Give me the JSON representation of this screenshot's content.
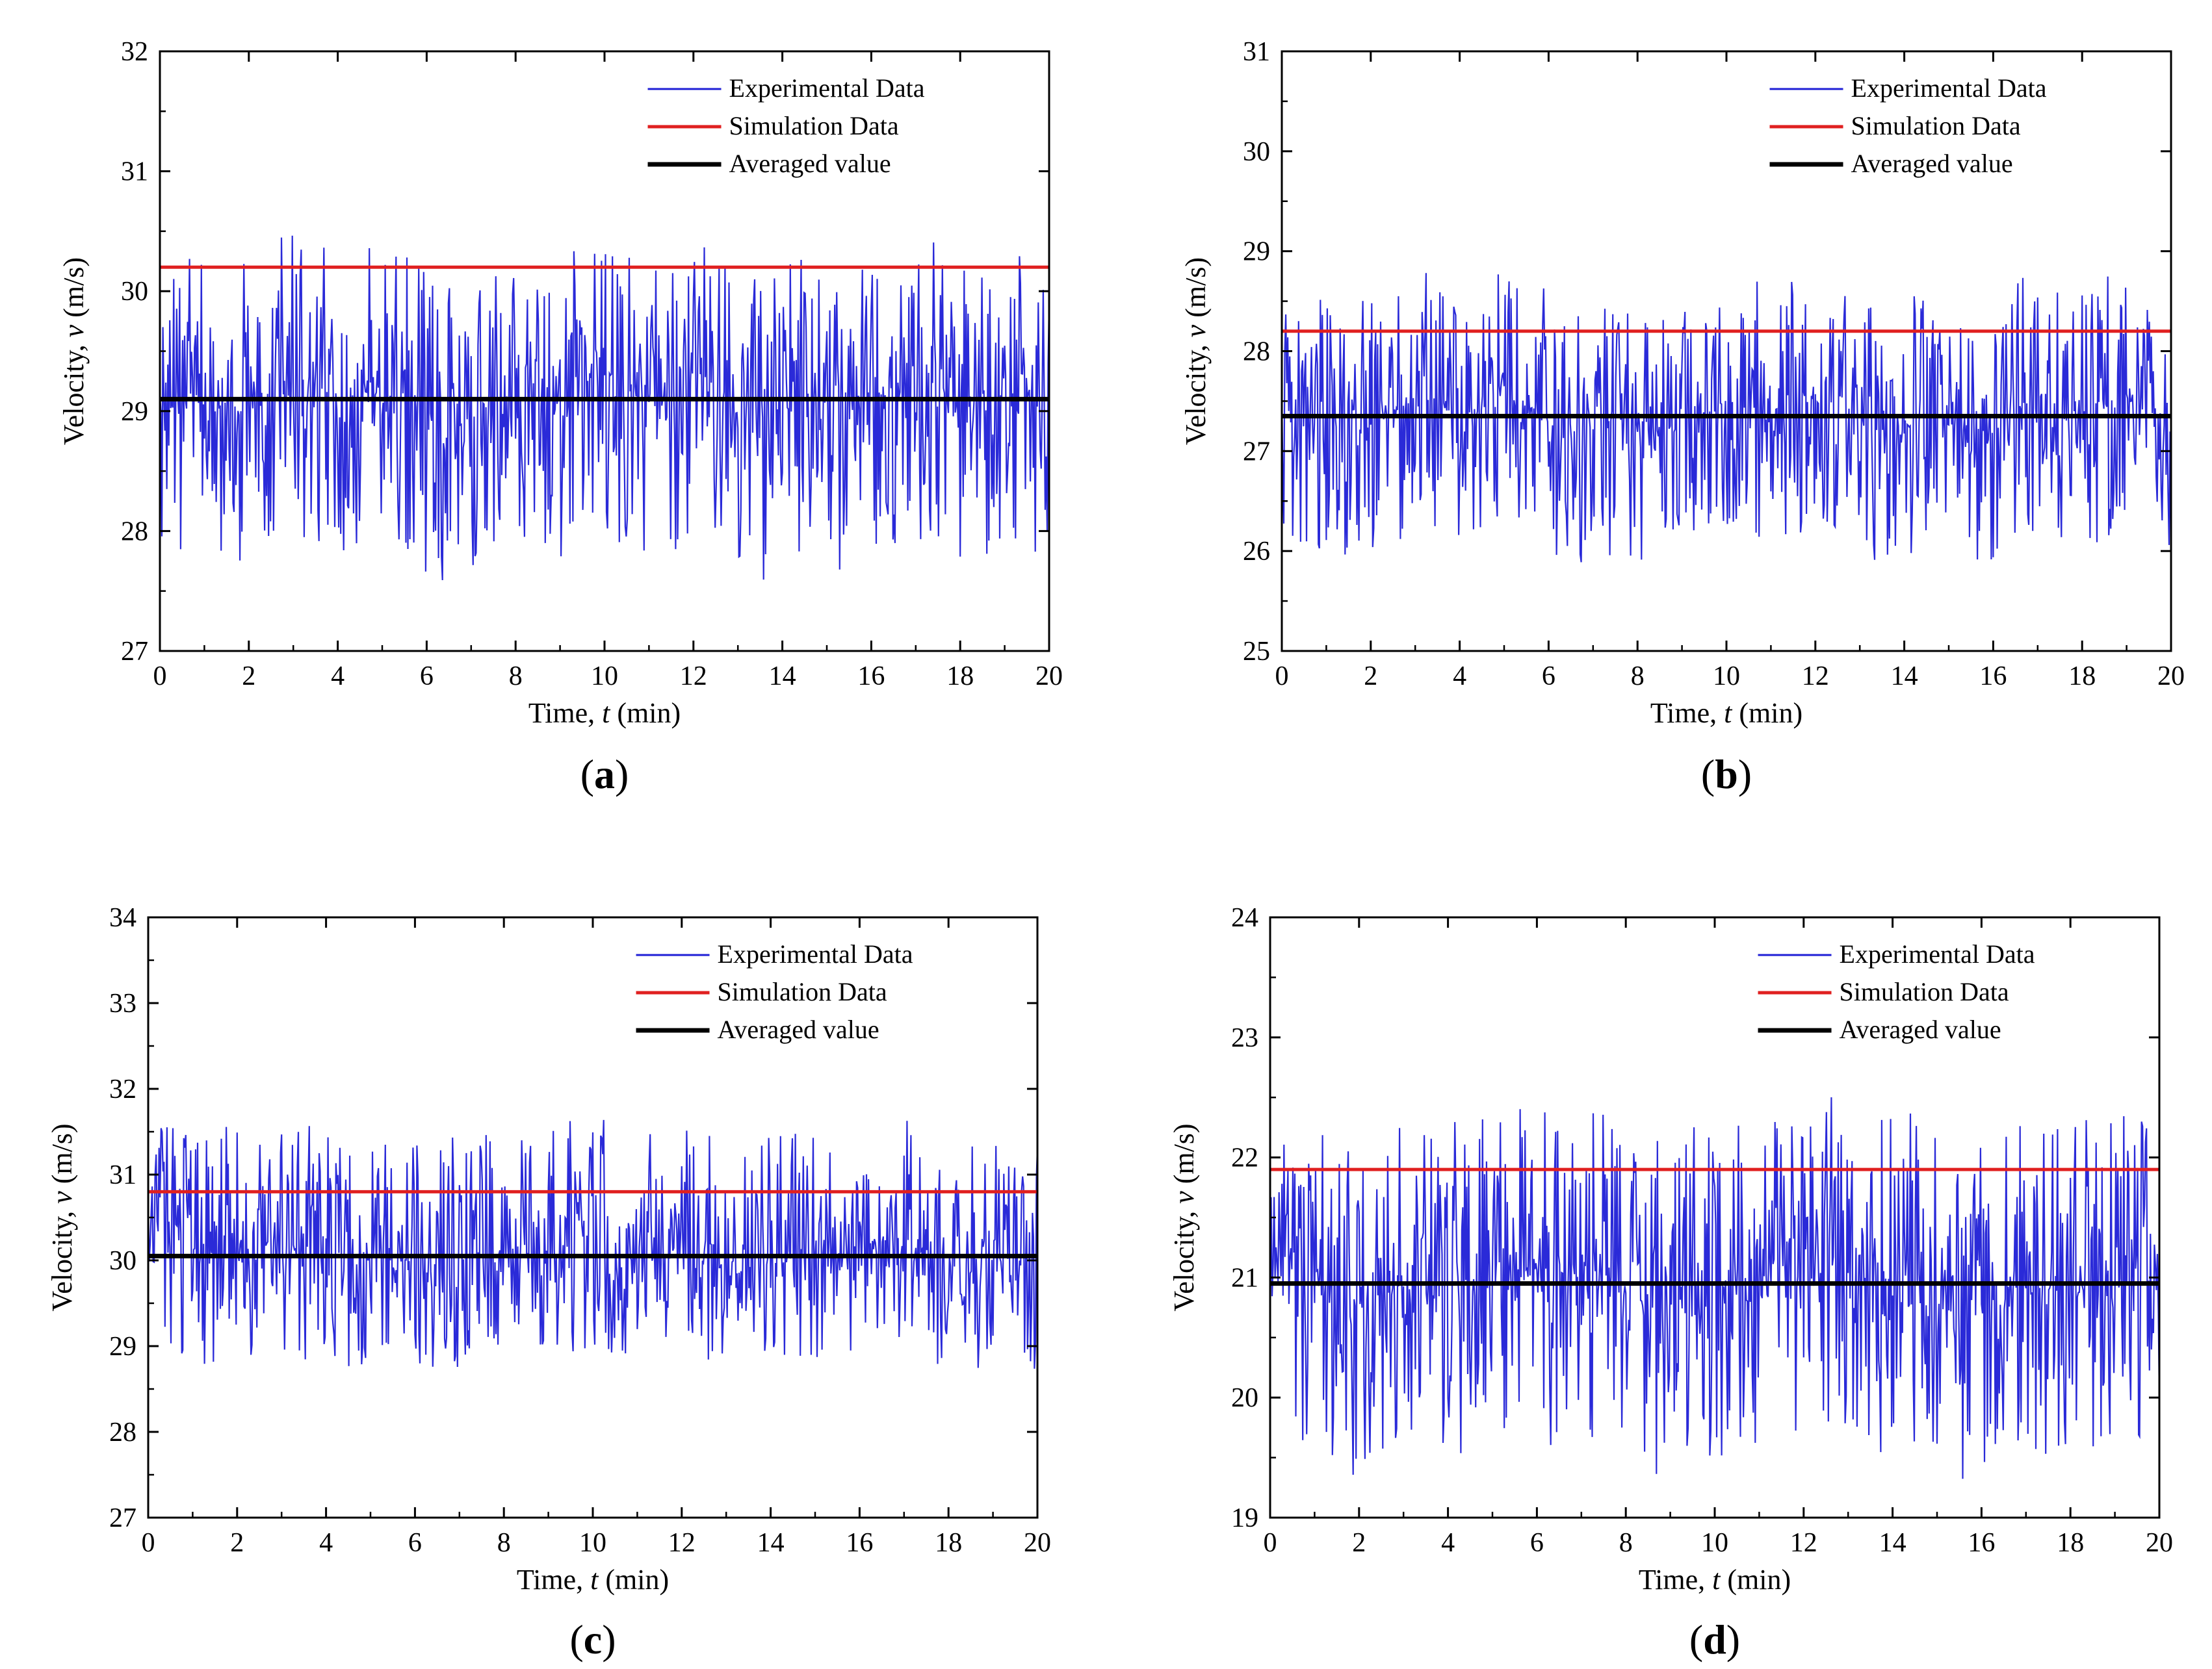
{
  "figure": {
    "panels_count": 4
  },
  "chart_data": [
    {
      "id": "a",
      "type": "line",
      "panel_label": "(a)",
      "panel_letter": "a",
      "xlabel_prefix": "Time, ",
      "xlabel_var": "t",
      "xlabel_suffix": " (min)",
      "ylabel_prefix": "Velocity, ",
      "ylabel_var": "v",
      "ylabel_suffix": " (m/s)",
      "xlim": [
        0,
        20
      ],
      "ylim": [
        27,
        32
      ],
      "xticks": [
        0,
        2,
        4,
        6,
        8,
        10,
        12,
        14,
        16,
        18,
        20
      ],
      "yticks": [
        27,
        28,
        29,
        30,
        31,
        32
      ],
      "legend_position": "top-right",
      "series": [
        {
          "name": "Experimental Data",
          "kind": "noisy",
          "color": "#1f1fd6",
          "mean": 29.1,
          "amp_up": 1.2,
          "amp_down": 1.35,
          "seed": 11
        },
        {
          "name": "Simulation Data",
          "kind": "constant",
          "color": "#e02020",
          "value": 30.2
        },
        {
          "name": "Averaged value",
          "kind": "constant",
          "color": "#000000",
          "value": 29.1
        }
      ]
    },
    {
      "id": "b",
      "type": "line",
      "panel_label": "(b)",
      "panel_letter": "b",
      "xlabel_prefix": "Time, ",
      "xlabel_var": "t",
      "xlabel_suffix": " (min)",
      "ylabel_prefix": "Velocity, ",
      "ylabel_var": "v",
      "ylabel_suffix": " (m/s)",
      "xlim": [
        0,
        20
      ],
      "ylim": [
        25,
        31
      ],
      "xticks": [
        0,
        2,
        4,
        6,
        8,
        10,
        12,
        14,
        16,
        18,
        20
      ],
      "yticks": [
        25,
        26,
        27,
        28,
        29,
        30,
        31
      ],
      "legend_position": "top-right",
      "series": [
        {
          "name": "Experimental Data",
          "kind": "noisy",
          "color": "#1f1fd6",
          "mean": 27.35,
          "amp_up": 1.3,
          "amp_down": 1.35,
          "seed": 23
        },
        {
          "name": "Simulation Data",
          "kind": "constant",
          "color": "#e02020",
          "value": 28.2
        },
        {
          "name": "Averaged value",
          "kind": "constant",
          "color": "#000000",
          "value": 27.35
        }
      ]
    },
    {
      "id": "c",
      "type": "line",
      "panel_label": "(c)",
      "panel_letter": "c",
      "xlabel_prefix": "Time, ",
      "xlabel_var": "t",
      "xlabel_suffix": " (min)",
      "ylabel_prefix": "Velocity, ",
      "ylabel_var": "v",
      "ylabel_suffix": " (m/s)",
      "xlim": [
        0,
        20
      ],
      "ylim": [
        27,
        34
      ],
      "xticks": [
        0,
        2,
        4,
        6,
        8,
        10,
        12,
        14,
        16,
        18,
        20
      ],
      "yticks": [
        27,
        28,
        29,
        30,
        31,
        32,
        33,
        34
      ],
      "legend_position": "top-right",
      "series": [
        {
          "name": "Experimental Data",
          "kind": "noisy",
          "color": "#1f1fd6",
          "mean": 30.05,
          "amp_up": 1.5,
          "amp_down": 1.3,
          "seed": 37
        },
        {
          "name": "Simulation Data",
          "kind": "constant",
          "color": "#e02020",
          "value": 30.8
        },
        {
          "name": "Averaged value",
          "kind": "constant",
          "color": "#000000",
          "value": 30.05
        }
      ]
    },
    {
      "id": "d",
      "type": "line",
      "panel_label": "(d)",
      "panel_letter": "d",
      "xlabel_prefix": "Time, ",
      "xlabel_var": "t",
      "xlabel_suffix": " (min)",
      "ylabel_prefix": "Velocity, ",
      "ylabel_var": "v",
      "ylabel_suffix": " (m/s)",
      "xlim": [
        0,
        20
      ],
      "ylim": [
        19,
        24
      ],
      "xticks": [
        0,
        2,
        4,
        6,
        8,
        10,
        12,
        14,
        16,
        18,
        20
      ],
      "yticks": [
        19,
        20,
        21,
        22,
        23,
        24
      ],
      "legend_position": "top-right",
      "series": [
        {
          "name": "Experimental Data",
          "kind": "noisy",
          "color": "#1f1fd6",
          "mean": 20.95,
          "amp_up": 1.4,
          "amp_down": 1.45,
          "seed": 53
        },
        {
          "name": "Simulation Data",
          "kind": "constant",
          "color": "#e02020",
          "value": 21.9
        },
        {
          "name": "Averaged value",
          "kind": "constant",
          "color": "#000000",
          "value": 20.95
        }
      ]
    }
  ]
}
